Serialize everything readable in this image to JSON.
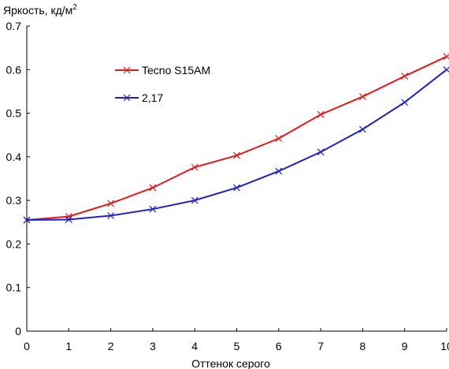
{
  "chart_data": {
    "type": "line",
    "title": "",
    "ylabel": "Яркость, кд/м",
    "ylabel_sup": "2",
    "xlabel": "Оттенок серого",
    "xlim": [
      0,
      10
    ],
    "ylim": [
      0,
      0.7
    ],
    "x": [
      0,
      1,
      2,
      3,
      4,
      5,
      6,
      7,
      8,
      9,
      10
    ],
    "x_tick_labels": [
      "0",
      "1",
      "2",
      "3",
      "4",
      "5",
      "6",
      "7",
      "8",
      "9",
      "10"
    ],
    "y_ticks": [
      0,
      0.1,
      0.2,
      0.3,
      0.4,
      0.5,
      0.6,
      0.7
    ],
    "y_tick_labels": [
      "0",
      "0.1",
      "0.2",
      "0.3",
      "0.4",
      "0.5",
      "0.6",
      "0.7"
    ],
    "grid": false,
    "legend_position": "upper-left inside plot",
    "series": [
      {
        "name": "Tecno S15AM",
        "color": "#e31a1c",
        "marker": "x",
        "values": [
          0.255,
          0.263,
          0.293,
          0.329,
          0.376,
          0.403,
          0.442,
          0.497,
          0.538,
          0.585,
          0.63
        ]
      },
      {
        "name": "2,17",
        "color": "#1f1fcc",
        "marker": "x",
        "values": [
          0.255,
          0.256,
          0.265,
          0.28,
          0.3,
          0.329,
          0.367,
          0.411,
          0.463,
          0.525,
          0.6
        ]
      }
    ]
  }
}
